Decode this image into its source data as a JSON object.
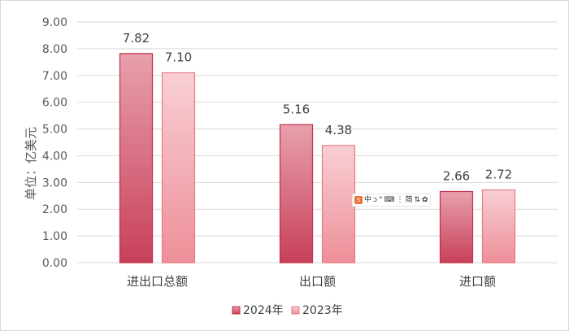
{
  "chart_data": {
    "type": "bar",
    "categories": [
      "进出口总额",
      "出口额",
      "进口额"
    ],
    "series": [
      {
        "name": "2024年",
        "values": [
          7.82,
          5.16,
          2.66
        ],
        "labels": [
          "7.82",
          "5.16",
          "2.66"
        ]
      },
      {
        "name": "2023年",
        "values": [
          7.1,
          4.38,
          2.72
        ],
        "labels": [
          "7.10",
          "4.38",
          "2.72"
        ]
      }
    ],
    "ylabel": "单位：亿美元",
    "ylim": [
      0,
      9
    ],
    "yticks": [
      "0.00",
      "1.00",
      "2.00",
      "3.00",
      "4.00",
      "5.00",
      "6.00",
      "7.00",
      "8.00",
      "9.00"
    ],
    "grid": true,
    "legend": "bottom",
    "colors": {
      "s2024_top": "#e8a0ac",
      "s2024_bottom": "#c8405a",
      "s2024_border": "#c0304a",
      "s2023_top": "#f8cfd4",
      "s2023_bottom": "#ee8f98",
      "s2023_border": "#e87a86",
      "grid": "#d9d9d9"
    }
  },
  "ime_toolbar": {
    "logo": "S",
    "items": [
      "中",
      "ↄ",
      "°",
      "⌨",
      "⋮",
      "简",
      "⇅",
      "✿"
    ]
  }
}
